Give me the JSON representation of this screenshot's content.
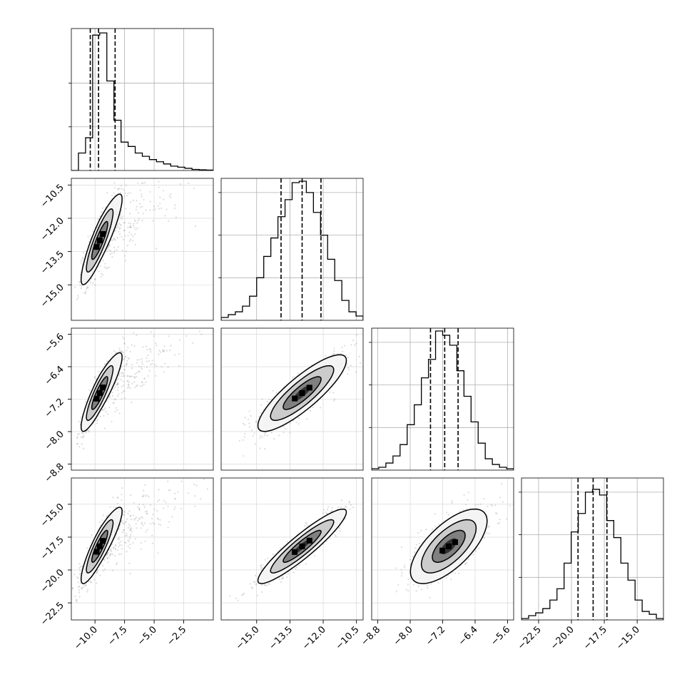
{
  "chart_data": {
    "type": "corner",
    "grid": true,
    "dimensions": [
      {
        "index": 0,
        "range": [
          -12.0,
          0.0
        ],
        "ticks": [
          -10.0,
          -7.5,
          -5.0,
          -2.5
        ],
        "tick_labels": [
          "−10.0",
          "−7.5",
          "−5.0",
          "−2.5"
        ],
        "quantiles": [
          -10.4,
          -9.7,
          -8.3
        ]
      },
      {
        "index": 1,
        "range": [
          -16.6,
          -10.2
        ],
        "ticks": [
          -10.5,
          -12.0,
          -13.5,
          -15.0
        ],
        "tick_labels": [
          "−10.5",
          "−12.0",
          "−13.5",
          "−15.0"
        ],
        "quantiles": [
          -13.9,
          -12.95,
          -12.1
        ]
      },
      {
        "index": 2,
        "range": [
          -8.95,
          -5.45
        ],
        "ticks": [
          -5.6,
          -6.4,
          -7.2,
          -8.0,
          -8.8
        ],
        "tick_labels": [
          "−5.6",
          "−6.4",
          "−7.2",
          "−8.0",
          "−8.8"
        ],
        "quantiles": [
          -7.5,
          -7.15,
          -6.82
        ]
      },
      {
        "index": 3,
        "range": [
          -23.8,
          -13.0
        ],
        "ticks": [
          -15.0,
          -17.5,
          -20.0,
          -22.5
        ],
        "tick_labels": [
          "−15.0",
          "−17.5",
          "−20.0",
          "−22.5"
        ],
        "quantiles": [
          -19.5,
          -18.35,
          -17.3
        ]
      }
    ],
    "histograms": [
      {
        "x_edges_start": -12.0,
        "bin_width": 0.6,
        "counts": [
          0.0,
          0.8,
          1.5,
          6.2,
          6.3,
          4.1,
          2.3,
          1.3,
          1.1,
          0.8,
          0.65,
          0.5,
          0.4,
          0.3,
          0.2,
          0.15,
          0.1,
          0.05,
          0.03,
          0.02
        ],
        "count_max": 6.5,
        "count_ticks": [
          2.0,
          4.0
        ]
      },
      {
        "x_edges_start": -16.6,
        "bin_width": 0.32,
        "counts": [
          0.02,
          0.04,
          0.06,
          0.1,
          0.17,
          0.3,
          0.45,
          0.58,
          0.73,
          0.85,
          0.97,
          0.98,
          0.9,
          0.76,
          0.6,
          0.43,
          0.28,
          0.14,
          0.06,
          0.03
        ],
        "count_max": 1.0,
        "count_ticks": [
          0.3,
          0.6,
          0.9
        ]
      },
      {
        "x_edges_start": -8.95,
        "bin_width": 0.175,
        "counts": [
          0.01,
          0.02,
          0.05,
          0.1,
          0.18,
          0.32,
          0.46,
          0.65,
          0.78,
          0.98,
          0.95,
          0.88,
          0.7,
          0.52,
          0.34,
          0.19,
          0.08,
          0.04,
          0.02,
          0.01
        ],
        "count_max": 1.0,
        "count_ticks": [
          0.3,
          0.6,
          0.9
        ]
      },
      {
        "x_edges_start": -23.8,
        "bin_width": 0.54,
        "counts": [
          0.01,
          0.03,
          0.05,
          0.08,
          0.14,
          0.22,
          0.4,
          0.62,
          0.75,
          0.9,
          0.92,
          0.88,
          0.7,
          0.58,
          0.4,
          0.28,
          0.14,
          0.06,
          0.04,
          0.01
        ],
        "count_max": 1.0,
        "count_ticks": [
          0.3,
          0.6,
          0.9
        ]
      }
    ],
    "pairs": [
      {
        "x": 0,
        "y": 1,
        "mean": [
          -9.6,
          -13.0
        ],
        "std": [
          0.75,
          0.95
        ],
        "corr": 0.88,
        "tail": [
          2.2,
          0.35
        ]
      },
      {
        "x": 0,
        "y": 2,
        "mean": [
          -9.6,
          -7.05
        ],
        "std": [
          0.75,
          0.45
        ],
        "corr": 0.88,
        "tail": [
          2.2,
          0.18
        ]
      },
      {
        "x": 0,
        "y": 3,
        "mean": [
          -9.6,
          -18.2
        ],
        "std": [
          0.75,
          1.35
        ],
        "corr": 0.88,
        "tail": [
          2.2,
          0.5
        ]
      },
      {
        "x": 1,
        "y": 2,
        "mean": [
          -12.95,
          -7.05
        ],
        "std": [
          0.95,
          0.45
        ],
        "corr": 0.85,
        "tail": [
          0,
          0
        ]
      },
      {
        "x": 1,
        "y": 3,
        "mean": [
          -12.95,
          -18.2
        ],
        "std": [
          0.95,
          1.35
        ],
        "corr": 0.92,
        "tail": [
          0,
          0
        ]
      },
      {
        "x": 2,
        "y": 3,
        "mean": [
          -7.05,
          -18.2
        ],
        "std": [
          0.45,
          1.35
        ],
        "corr": 0.68,
        "tail": [
          0,
          0
        ]
      }
    ]
  }
}
